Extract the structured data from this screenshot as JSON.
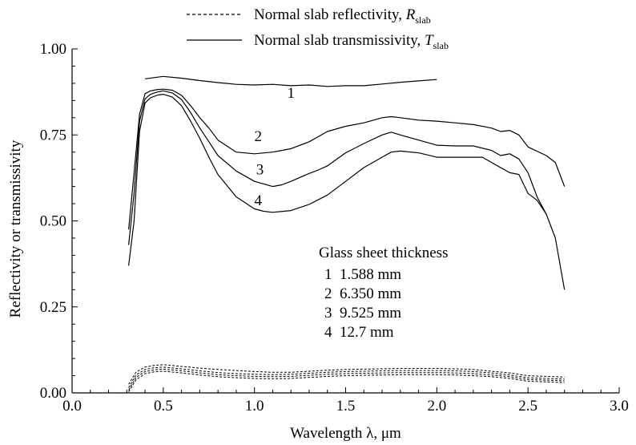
{
  "chart_data": {
    "type": "line",
    "title": "",
    "xlabel": "Wavelength λ, μm",
    "ylabel": "Reflectivity or transmissivity",
    "xlim": [
      0.0,
      3.0
    ],
    "ylim": [
      0.0,
      1.0
    ],
    "x_ticks": [
      "0.0",
      "0.5",
      "1.0",
      "1.5",
      "2.0",
      "2.5",
      "3.0"
    ],
    "y_ticks": [
      "0.00",
      "0.25",
      "0.50",
      "0.75",
      "1.00"
    ],
    "x_minor_step": 0.1,
    "y_minor_step": 0.05,
    "grid": false,
    "legend": {
      "position": "top-center",
      "entries": [
        {
          "text": "Normal slab reflectivity, ",
          "symbol": "R",
          "subscript": "slab",
          "style": "dashed"
        },
        {
          "text": "Normal slab transmissivity, ",
          "symbol": "T",
          "subscript": "slab",
          "style": "solid"
        }
      ]
    },
    "annotation": {
      "heading": "Glass sheet thickness",
      "lines": [
        "1  1.588 mm",
        "2  6.350 mm",
        "3  9.525 mm",
        "4  12.7 mm"
      ]
    },
    "series": [
      {
        "name": "1",
        "style": "solid",
        "x": [
          0.4,
          0.5,
          0.6,
          0.7,
          0.8,
          0.9,
          1.0,
          1.1,
          1.2,
          1.3,
          1.4,
          1.5,
          1.6,
          1.7,
          1.8,
          1.9,
          2.0
        ],
        "y": [
          0.913,
          0.92,
          0.915,
          0.908,
          0.902,
          0.897,
          0.895,
          0.897,
          0.893,
          0.895,
          0.891,
          0.893,
          0.893,
          0.898,
          0.903,
          0.907,
          0.911
        ]
      },
      {
        "name": "2",
        "style": "solid",
        "x": [
          0.31,
          0.34,
          0.37,
          0.4,
          0.43,
          0.47,
          0.5,
          0.55,
          0.6,
          0.65,
          0.7,
          0.75,
          0.8,
          0.9,
          1.0,
          1.1,
          1.15,
          1.2,
          1.3,
          1.4,
          1.5,
          1.6,
          1.7,
          1.75,
          1.8,
          1.9,
          2.0,
          2.1,
          2.2,
          2.3,
          2.35,
          2.4,
          2.45,
          2.5,
          2.6,
          2.65,
          2.7
        ],
        "y": [
          0.475,
          0.64,
          0.81,
          0.87,
          0.878,
          0.882,
          0.883,
          0.88,
          0.865,
          0.835,
          0.8,
          0.77,
          0.735,
          0.7,
          0.695,
          0.7,
          0.705,
          0.71,
          0.73,
          0.76,
          0.775,
          0.785,
          0.8,
          0.803,
          0.8,
          0.793,
          0.79,
          0.785,
          0.78,
          0.77,
          0.76,
          0.763,
          0.75,
          0.715,
          0.69,
          0.67,
          0.6
        ]
      },
      {
        "name": "3",
        "style": "solid",
        "x": [
          0.31,
          0.34,
          0.37,
          0.4,
          0.43,
          0.47,
          0.5,
          0.55,
          0.6,
          0.65,
          0.7,
          0.75,
          0.8,
          0.9,
          1.0,
          1.1,
          1.15,
          1.2,
          1.3,
          1.35,
          1.4,
          1.5,
          1.6,
          1.7,
          1.75,
          1.8,
          1.9,
          2.0,
          2.1,
          2.2,
          2.3,
          2.35,
          2.4,
          2.45,
          2.5,
          2.55,
          2.6
        ],
        "y": [
          0.43,
          0.58,
          0.79,
          0.855,
          0.868,
          0.875,
          0.878,
          0.872,
          0.853,
          0.815,
          0.77,
          0.73,
          0.69,
          0.645,
          0.615,
          0.6,
          0.605,
          0.615,
          0.638,
          0.648,
          0.66,
          0.698,
          0.725,
          0.75,
          0.758,
          0.75,
          0.735,
          0.72,
          0.718,
          0.718,
          0.705,
          0.69,
          0.695,
          0.68,
          0.64,
          0.57,
          0.52
        ]
      },
      {
        "name": "4",
        "style": "solid",
        "x": [
          0.31,
          0.34,
          0.37,
          0.4,
          0.43,
          0.47,
          0.5,
          0.55,
          0.6,
          0.65,
          0.7,
          0.75,
          0.8,
          0.9,
          1.0,
          1.05,
          1.1,
          1.2,
          1.3,
          1.4,
          1.5,
          1.6,
          1.7,
          1.75,
          1.8,
          1.9,
          2.0,
          2.1,
          2.2,
          2.25,
          2.3,
          2.4,
          2.45,
          2.5,
          2.55,
          2.6,
          2.65,
          2.7
        ],
        "y": [
          0.37,
          0.5,
          0.76,
          0.843,
          0.858,
          0.866,
          0.868,
          0.86,
          0.835,
          0.79,
          0.74,
          0.685,
          0.635,
          0.57,
          0.535,
          0.528,
          0.525,
          0.53,
          0.548,
          0.575,
          0.615,
          0.655,
          0.685,
          0.7,
          0.703,
          0.698,
          0.685,
          0.685,
          0.685,
          0.685,
          0.67,
          0.64,
          0.635,
          0.58,
          0.56,
          0.52,
          0.45,
          0.3
        ]
      },
      {
        "name": "",
        "style": "dashed",
        "x": [
          0.31,
          0.35,
          0.4,
          0.45,
          0.5,
          0.6,
          0.7,
          0.8,
          0.9,
          1.0,
          1.1,
          1.2,
          1.3,
          1.4,
          1.5,
          1.6,
          1.7,
          1.8,
          1.9,
          2.0,
          2.1,
          2.2,
          2.3,
          2.4,
          2.5,
          2.6,
          2.7
        ],
        "y": [
          0.025,
          0.06,
          0.075,
          0.08,
          0.082,
          0.077,
          0.072,
          0.068,
          0.065,
          0.062,
          0.06,
          0.06,
          0.063,
          0.066,
          0.068,
          0.069,
          0.07,
          0.071,
          0.071,
          0.071,
          0.07,
          0.068,
          0.063,
          0.058,
          0.05,
          0.048,
          0.046
        ]
      },
      {
        "name": "",
        "style": "dashed",
        "x": [
          0.31,
          0.35,
          0.4,
          0.45,
          0.5,
          0.6,
          0.7,
          0.8,
          0.9,
          1.0,
          1.1,
          1.2,
          1.3,
          1.4,
          1.5,
          1.6,
          1.7,
          1.8,
          1.9,
          2.0,
          2.1,
          2.2,
          2.3,
          2.4,
          2.5,
          2.6,
          2.7
        ],
        "y": [
          0.015,
          0.052,
          0.068,
          0.073,
          0.075,
          0.07,
          0.064,
          0.059,
          0.056,
          0.054,
          0.053,
          0.054,
          0.057,
          0.06,
          0.062,
          0.063,
          0.064,
          0.065,
          0.065,
          0.065,
          0.064,
          0.062,
          0.058,
          0.052,
          0.044,
          0.042,
          0.04
        ]
      },
      {
        "name": "",
        "style": "dashed",
        "x": [
          0.31,
          0.35,
          0.4,
          0.45,
          0.5,
          0.6,
          0.7,
          0.8,
          0.9,
          1.0,
          1.1,
          1.2,
          1.3,
          1.4,
          1.5,
          1.6,
          1.7,
          1.8,
          1.9,
          2.0,
          2.1,
          2.2,
          2.3,
          2.4,
          2.5,
          2.6,
          2.7
        ],
        "y": [
          0.008,
          0.045,
          0.062,
          0.067,
          0.069,
          0.064,
          0.058,
          0.053,
          0.05,
          0.048,
          0.047,
          0.048,
          0.051,
          0.054,
          0.056,
          0.057,
          0.058,
          0.059,
          0.059,
          0.059,
          0.058,
          0.056,
          0.052,
          0.047,
          0.039,
          0.037,
          0.035
        ]
      },
      {
        "name": "",
        "style": "dashed",
        "x": [
          0.31,
          0.35,
          0.4,
          0.45,
          0.5,
          0.6,
          0.7,
          0.8,
          0.9,
          1.0,
          1.1,
          1.2,
          1.3,
          1.4,
          1.5,
          1.6,
          1.7,
          1.8,
          1.9,
          2.0,
          2.1,
          2.2,
          2.3,
          2.4,
          2.5,
          2.6,
          2.7
        ],
        "y": [
          0.003,
          0.038,
          0.056,
          0.061,
          0.063,
          0.058,
          0.052,
          0.047,
          0.044,
          0.042,
          0.041,
          0.042,
          0.045,
          0.048,
          0.05,
          0.051,
          0.052,
          0.053,
          0.053,
          0.053,
          0.052,
          0.05,
          0.047,
          0.042,
          0.034,
          0.032,
          0.03
        ]
      }
    ]
  }
}
